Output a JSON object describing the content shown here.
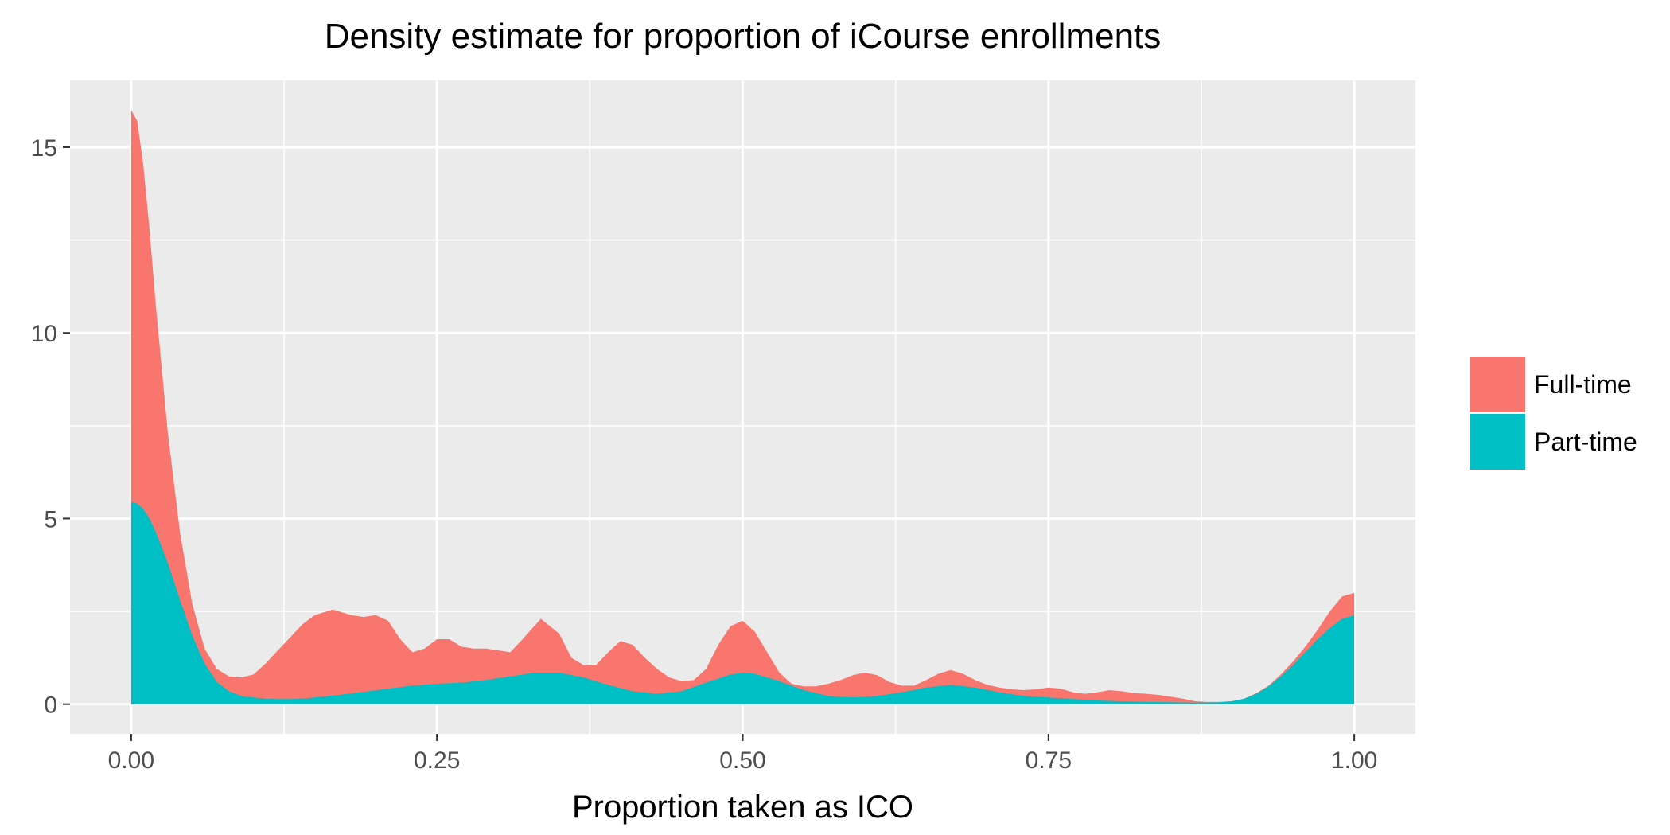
{
  "chart_data": {
    "type": "area",
    "title": "Density estimate for proportion of iCourse enrollments",
    "xlabel": "Proportion taken as ICO",
    "ylabel": "",
    "xlim": [
      -0.05,
      1.05
    ],
    "ylim": [
      -0.8,
      16.8
    ],
    "xticks": [
      0,
      0.25,
      0.5,
      0.75,
      1
    ],
    "xtick_labels": [
      "0.00",
      "0.25",
      "0.50",
      "0.75",
      "1.00"
    ],
    "yticks": [
      0,
      5,
      10,
      15
    ],
    "ytick_labels": [
      "0",
      "5",
      "10",
      "15"
    ],
    "grid": true,
    "stacked": true,
    "legend": {
      "position": "right",
      "entries": [
        "Full-time",
        "Part-time"
      ]
    },
    "series": [
      {
        "name": "Full-time",
        "color": "#F8766D",
        "points": [
          [
            0,
            16.0
          ],
          [
            0.005,
            15.7
          ],
          [
            0.01,
            14.5
          ],
          [
            0.015,
            12.8
          ],
          [
            0.02,
            10.8
          ],
          [
            0.03,
            7.3
          ],
          [
            0.04,
            4.6
          ],
          [
            0.05,
            2.7
          ],
          [
            0.06,
            1.5
          ],
          [
            0.07,
            0.95
          ],
          [
            0.08,
            0.75
          ],
          [
            0.09,
            0.72
          ],
          [
            0.1,
            0.8
          ],
          [
            0.11,
            1.1
          ],
          [
            0.12,
            1.45
          ],
          [
            0.13,
            1.8
          ],
          [
            0.14,
            2.15
          ],
          [
            0.15,
            2.4
          ],
          [
            0.165,
            2.55
          ],
          [
            0.18,
            2.4
          ],
          [
            0.19,
            2.35
          ],
          [
            0.2,
            2.4
          ],
          [
            0.21,
            2.25
          ],
          [
            0.22,
            1.75
          ],
          [
            0.23,
            1.4
          ],
          [
            0.24,
            1.5
          ],
          [
            0.25,
            1.75
          ],
          [
            0.26,
            1.75
          ],
          [
            0.27,
            1.55
          ],
          [
            0.28,
            1.5
          ],
          [
            0.29,
            1.5
          ],
          [
            0.3,
            1.45
          ],
          [
            0.31,
            1.4
          ],
          [
            0.32,
            1.75
          ],
          [
            0.335,
            2.3
          ],
          [
            0.35,
            1.9
          ],
          [
            0.36,
            1.25
          ],
          [
            0.37,
            1.05
          ],
          [
            0.38,
            1.05
          ],
          [
            0.39,
            1.4
          ],
          [
            0.4,
            1.7
          ],
          [
            0.41,
            1.6
          ],
          [
            0.42,
            1.25
          ],
          [
            0.43,
            0.95
          ],
          [
            0.44,
            0.72
          ],
          [
            0.45,
            0.62
          ],
          [
            0.46,
            0.65
          ],
          [
            0.47,
            0.95
          ],
          [
            0.48,
            1.6
          ],
          [
            0.49,
            2.1
          ],
          [
            0.5,
            2.25
          ],
          [
            0.51,
            1.95
          ],
          [
            0.52,
            1.4
          ],
          [
            0.53,
            0.85
          ],
          [
            0.54,
            0.55
          ],
          [
            0.55,
            0.48
          ],
          [
            0.56,
            0.48
          ],
          [
            0.57,
            0.55
          ],
          [
            0.58,
            0.65
          ],
          [
            0.59,
            0.78
          ],
          [
            0.6,
            0.85
          ],
          [
            0.61,
            0.78
          ],
          [
            0.62,
            0.6
          ],
          [
            0.63,
            0.5
          ],
          [
            0.64,
            0.5
          ],
          [
            0.65,
            0.65
          ],
          [
            0.66,
            0.82
          ],
          [
            0.67,
            0.92
          ],
          [
            0.68,
            0.82
          ],
          [
            0.69,
            0.65
          ],
          [
            0.7,
            0.52
          ],
          [
            0.71,
            0.45
          ],
          [
            0.72,
            0.4
          ],
          [
            0.73,
            0.38
          ],
          [
            0.74,
            0.4
          ],
          [
            0.75,
            0.45
          ],
          [
            0.76,
            0.42
          ],
          [
            0.77,
            0.32
          ],
          [
            0.78,
            0.28
          ],
          [
            0.79,
            0.32
          ],
          [
            0.8,
            0.38
          ],
          [
            0.81,
            0.35
          ],
          [
            0.82,
            0.3
          ],
          [
            0.83,
            0.28
          ],
          [
            0.84,
            0.25
          ],
          [
            0.85,
            0.2
          ],
          [
            0.86,
            0.15
          ],
          [
            0.87,
            0.08
          ],
          [
            0.88,
            0.06
          ],
          [
            0.89,
            0.06
          ],
          [
            0.9,
            0.08
          ],
          [
            0.91,
            0.15
          ],
          [
            0.92,
            0.3
          ],
          [
            0.93,
            0.5
          ],
          [
            0.94,
            0.8
          ],
          [
            0.95,
            1.15
          ],
          [
            0.96,
            1.55
          ],
          [
            0.97,
            2.0
          ],
          [
            0.98,
            2.5
          ],
          [
            0.99,
            2.9
          ],
          [
            1.0,
            3.0
          ]
        ]
      },
      {
        "name": "Part-time",
        "color": "#00BFC4",
        "points": [
          [
            0,
            5.45
          ],
          [
            0.005,
            5.4
          ],
          [
            0.01,
            5.25
          ],
          [
            0.015,
            5.0
          ],
          [
            0.02,
            4.65
          ],
          [
            0.03,
            3.8
          ],
          [
            0.04,
            2.8
          ],
          [
            0.05,
            1.85
          ],
          [
            0.06,
            1.1
          ],
          [
            0.07,
            0.6
          ],
          [
            0.08,
            0.35
          ],
          [
            0.09,
            0.22
          ],
          [
            0.1,
            0.18
          ],
          [
            0.11,
            0.15
          ],
          [
            0.12,
            0.14
          ],
          [
            0.13,
            0.14
          ],
          [
            0.14,
            0.15
          ],
          [
            0.15,
            0.18
          ],
          [
            0.17,
            0.25
          ],
          [
            0.19,
            0.33
          ],
          [
            0.21,
            0.42
          ],
          [
            0.23,
            0.5
          ],
          [
            0.25,
            0.55
          ],
          [
            0.27,
            0.58
          ],
          [
            0.29,
            0.65
          ],
          [
            0.31,
            0.75
          ],
          [
            0.33,
            0.85
          ],
          [
            0.35,
            0.85
          ],
          [
            0.37,
            0.72
          ],
          [
            0.39,
            0.52
          ],
          [
            0.41,
            0.35
          ],
          [
            0.43,
            0.28
          ],
          [
            0.45,
            0.35
          ],
          [
            0.47,
            0.58
          ],
          [
            0.49,
            0.8
          ],
          [
            0.5,
            0.85
          ],
          [
            0.51,
            0.82
          ],
          [
            0.53,
            0.62
          ],
          [
            0.55,
            0.38
          ],
          [
            0.57,
            0.22
          ],
          [
            0.59,
            0.18
          ],
          [
            0.61,
            0.22
          ],
          [
            0.63,
            0.32
          ],
          [
            0.65,
            0.45
          ],
          [
            0.67,
            0.52
          ],
          [
            0.69,
            0.45
          ],
          [
            0.71,
            0.32
          ],
          [
            0.73,
            0.22
          ],
          [
            0.75,
            0.18
          ],
          [
            0.77,
            0.14
          ],
          [
            0.79,
            0.1
          ],
          [
            0.81,
            0.08
          ],
          [
            0.83,
            0.06
          ],
          [
            0.85,
            0.05
          ],
          [
            0.87,
            0.04
          ],
          [
            0.89,
            0.05
          ],
          [
            0.9,
            0.08
          ],
          [
            0.91,
            0.15
          ],
          [
            0.92,
            0.28
          ],
          [
            0.93,
            0.48
          ],
          [
            0.94,
            0.75
          ],
          [
            0.95,
            1.05
          ],
          [
            0.96,
            1.4
          ],
          [
            0.97,
            1.75
          ],
          [
            0.98,
            2.05
          ],
          [
            0.99,
            2.3
          ],
          [
            1.0,
            2.4
          ]
        ]
      }
    ]
  }
}
